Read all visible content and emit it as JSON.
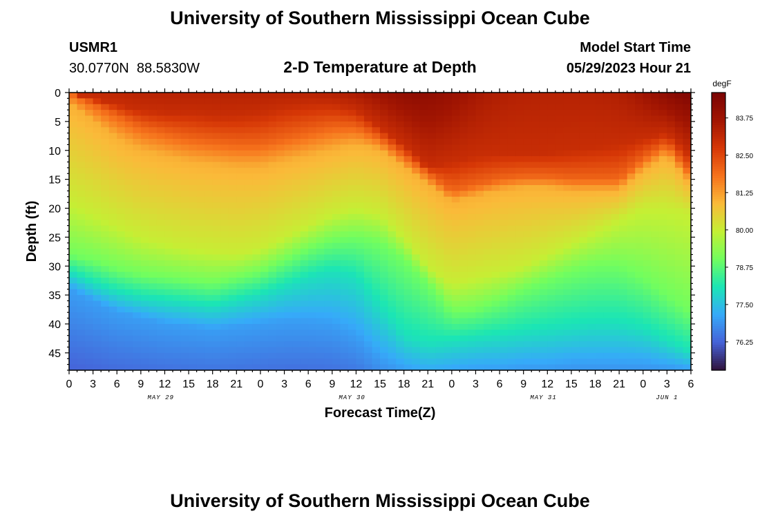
{
  "page": {
    "title": "University of Southern Mississippi Ocean Cube",
    "footer_title": "University of Southern Mississippi Ocean Cube",
    "station_id": "USMR1",
    "station_coords": "30.0770N  88.5830W",
    "model_start_label": "Model Start Time",
    "model_start_value": "05/29/2023 Hour 21"
  },
  "chart_data": {
    "type": "heatmap",
    "title": "2-D Temperature at Depth",
    "xlabel": "Forecast Time(Z)",
    "ylabel": "Depth (ft)",
    "colorbar_label": "degF",
    "x_hours_range": [
      0,
      78
    ],
    "x_tick_labels": [
      "0",
      "3",
      "6",
      "9",
      "12",
      "15",
      "18",
      "21",
      "0",
      "3",
      "6",
      "9",
      "12",
      "15",
      "18",
      "21",
      "0",
      "3",
      "6",
      "9",
      "12",
      "15",
      "18",
      "21",
      "0",
      "3",
      "6"
    ],
    "date_labels": [
      {
        "label": "MAY 29",
        "hour": 11.5
      },
      {
        "label": "MAY 30",
        "hour": 35.5
      },
      {
        "label": "MAY 31",
        "hour": 59.5
      },
      {
        "label": "JUN 1",
        "hour": 75
      }
    ],
    "y_range": [
      0,
      48
    ],
    "y_ticks": [
      0,
      5,
      10,
      15,
      20,
      25,
      30,
      35,
      40,
      45
    ],
    "colorbar_range": [
      75.3,
      84.6
    ],
    "colorbar_ticks": [
      "83.75",
      "82.50",
      "81.25",
      "80.00",
      "78.75",
      "77.50",
      "76.25"
    ],
    "isotherm_depths_ft": {
      "hours": [
        0,
        3,
        6,
        9,
        12,
        15,
        18,
        21,
        24,
        27,
        30,
        33,
        36,
        39,
        42,
        45,
        48,
        51,
        54,
        57,
        60,
        63,
        66,
        69,
        72,
        75,
        78
      ],
      "t83_0": [
        0,
        1,
        2,
        3,
        3.5,
        3.5,
        4,
        4,
        3.5,
        2.5,
        2,
        2,
        3,
        6,
        9,
        13,
        12,
        11,
        10.5,
        10.5,
        10.5,
        10,
        9.5,
        9,
        8,
        7,
        11
      ],
      "t82_0": [
        0,
        2,
        4,
        6,
        7,
        8,
        8.5,
        9,
        9,
        8,
        7,
        6,
        6,
        8,
        11,
        14,
        17,
        16,
        15,
        14.5,
        14.5,
        15,
        15,
        15,
        11.5,
        9,
        14
      ],
      "t81_0": [
        2,
        5,
        8,
        10,
        11,
        12,
        12.5,
        13,
        13,
        12,
        11,
        10,
        9,
        10,
        13,
        16,
        19,
        18,
        17,
        16.5,
        16.5,
        17,
        17,
        17,
        13.5,
        11,
        16
      ],
      "t80_0": [
        19,
        21,
        23,
        25,
        26,
        27,
        27.5,
        28,
        27,
        25,
        23,
        21,
        20,
        21,
        25,
        30,
        33,
        32,
        31,
        30,
        28,
        26,
        24,
        22,
        20,
        20,
        21
      ],
      "t79_0": [
        28,
        29,
        30.5,
        31.5,
        32,
        32.5,
        33,
        32,
        31,
        29,
        27,
        25.5,
        25,
        26,
        29,
        33,
        38,
        37.5,
        36,
        34,
        32.5,
        31,
        30,
        30,
        32,
        35,
        38
      ],
      "t78_0": [
        31,
        33,
        34.5,
        35.5,
        36,
        36.5,
        37,
        36,
        35,
        33.5,
        32,
        31,
        32,
        37,
        42,
        43.5,
        43,
        42.5,
        42,
        41.5,
        41,
        40.5,
        40,
        40,
        41,
        43,
        45
      ],
      "t77_0": [
        34,
        36,
        38,
        39,
        40,
        40.5,
        41,
        40.5,
        40,
        39.5,
        39.5,
        40,
        42,
        46,
        48,
        49,
        48.5,
        48,
        48,
        47.5,
        47.5,
        47,
        47,
        47,
        47,
        47.5,
        48
      ]
    }
  }
}
